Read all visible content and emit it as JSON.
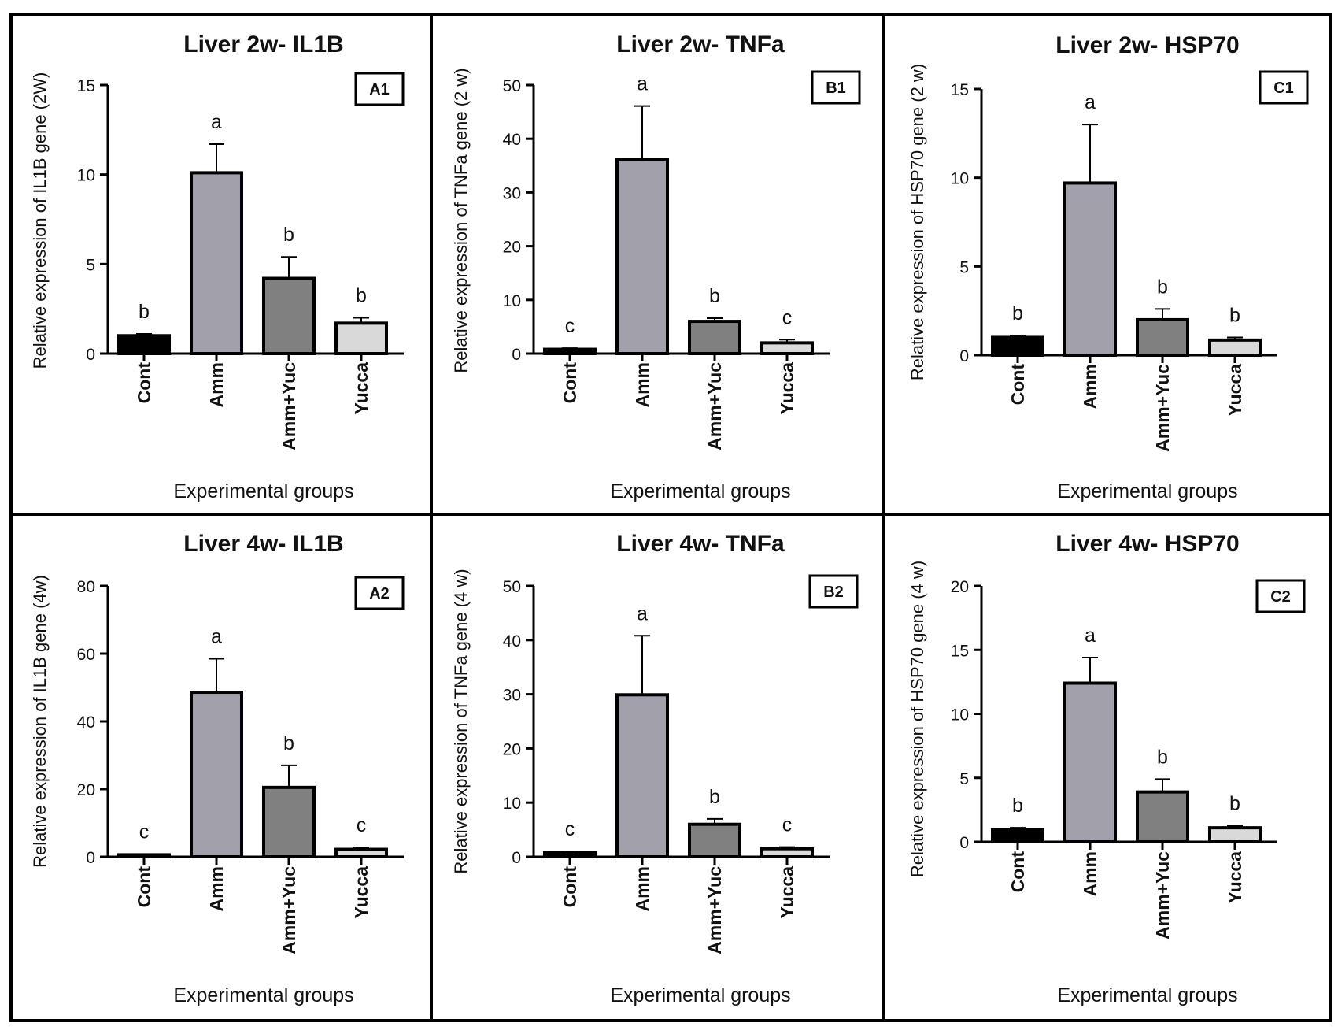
{
  "colors": {
    "Cont": "#000000",
    "Amm": "#a2a1ab",
    "Amm+Yuc": "#808080",
    "Yucca": "#d9d9d9"
  },
  "chart_data": [
    {
      "type": "bar",
      "panel": "A1",
      "title": "Liver 2w- IL1B",
      "xlabel": "Experimental groups",
      "ylabel": "Relative expression of IL1B gene (2W)",
      "categories": [
        "Cont",
        "Amm",
        "Amm+Yuc",
        "Yucca"
      ],
      "values": [
        1.0,
        10.1,
        4.2,
        1.7
      ],
      "errors": [
        0.1,
        1.6,
        1.2,
        0.3
      ],
      "letters": [
        "b",
        "a",
        "b",
        "b"
      ],
      "ylim": [
        0,
        15
      ],
      "yticks": [
        0,
        5,
        10,
        15
      ]
    },
    {
      "type": "bar",
      "panel": "B1",
      "title": "Liver 2w- TNFa",
      "xlabel": "Experimental groups",
      "ylabel": "Relative expression of TNFa gene (2 w)",
      "categories": [
        "Cont",
        "Amm",
        "Amm+Yuc",
        "Yucca"
      ],
      "values": [
        0.8,
        36.2,
        6.0,
        2.0
      ],
      "errors": [
        0.2,
        9.9,
        0.6,
        0.6
      ],
      "letters": [
        "c",
        "a",
        "b",
        "c"
      ],
      "ylim": [
        0,
        50
      ],
      "yticks": [
        0,
        10,
        20,
        30,
        40,
        50
      ]
    },
    {
      "type": "bar",
      "panel": "C1",
      "title": "Liver 2w- HSP70",
      "xlabel": "Experimental groups",
      "ylabel": "Relative expression of HSP70 gene (2 w)",
      "categories": [
        "Cont",
        "Amm",
        "Amm+Yuc",
        "Yucca"
      ],
      "values": [
        1.0,
        9.7,
        2.0,
        0.85
      ],
      "errors": [
        0.1,
        3.3,
        0.6,
        0.15
      ],
      "letters": [
        "b",
        "a",
        "b",
        "b"
      ],
      "ylim": [
        0,
        15
      ],
      "yticks": [
        0,
        5,
        10,
        15
      ]
    },
    {
      "type": "bar",
      "panel": "A2",
      "title": "Liver 4w- IL1B",
      "xlabel": "Experimental groups",
      "ylabel": "Relative expression of IL1B gene (4w)",
      "categories": [
        "Cont",
        "Amm",
        "Amm+Yuc",
        "Yucca"
      ],
      "values": [
        0.6,
        48.6,
        20.5,
        2.2
      ],
      "errors": [
        0.2,
        9.9,
        6.5,
        0.6
      ],
      "letters": [
        "c",
        "a",
        "b",
        "c"
      ],
      "ylim": [
        0,
        80
      ],
      "yticks": [
        0,
        20,
        40,
        60,
        80
      ]
    },
    {
      "type": "bar",
      "panel": "B2",
      "title": "Liver 4w- TNFa",
      "xlabel": "Experimental groups",
      "ylabel": "Relative expression of TNFa gene (4 w)",
      "categories": [
        "Cont",
        "Amm",
        "Amm+Yuc",
        "Yucca"
      ],
      "values": [
        0.8,
        29.9,
        6.0,
        1.5
      ],
      "errors": [
        0.2,
        10.9,
        1.0,
        0.3
      ],
      "letters": [
        "c",
        "a",
        "b",
        "c"
      ],
      "ylim": [
        0,
        50
      ],
      "yticks": [
        0,
        10,
        20,
        30,
        40,
        50
      ]
    },
    {
      "type": "bar",
      "panel": "C2",
      "title": "Liver 4w- HSP70",
      "xlabel": "Experimental groups",
      "ylabel": "Relative expression of HSP70 gene (4 w)",
      "categories": [
        "Cont",
        "Amm",
        "Amm+Yuc",
        "Yucca"
      ],
      "values": [
        0.95,
        12.4,
        3.9,
        1.1
      ],
      "errors": [
        0.15,
        2.0,
        1.0,
        0.15
      ],
      "letters": [
        "b",
        "a",
        "b",
        "b"
      ],
      "ylim": [
        0,
        20
      ],
      "yticks": [
        0,
        5,
        10,
        15,
        20
      ]
    }
  ]
}
